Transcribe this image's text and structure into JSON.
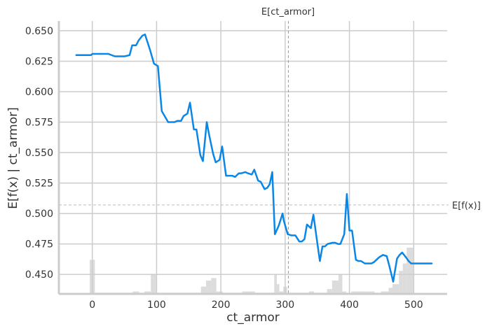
{
  "chart_data": {
    "type": "line",
    "xlabel": "ct_armor",
    "ylabel": "E[f(x) | ct_armor]",
    "xlim": [
      -52,
      552
    ],
    "ylim": [
      0.434,
      0.658
    ],
    "x_ticks": [
      0,
      100,
      200,
      300,
      400,
      500
    ],
    "y_ticks": [
      0.45,
      0.475,
      0.5,
      0.525,
      0.55,
      0.575,
      0.6,
      0.625,
      0.65
    ],
    "grid": true,
    "colors": {
      "line": "#0a86e6",
      "hist": "#dcdcdc",
      "ref": "#999999",
      "grid": "#cccccc"
    },
    "mean_x": 305,
    "mean_x_label": "E[ct_armor]",
    "mean_y": 0.507,
    "mean_y_label": "E[f(x)]",
    "series": [
      {
        "x": [
          -25,
          -2,
          0,
          25,
          35,
          50,
          58,
          62,
          68,
          72,
          78,
          82,
          90,
          96,
          102,
          108,
          118,
          128,
          132,
          138,
          142,
          148,
          152,
          158,
          162,
          168,
          172,
          178,
          182,
          188,
          192,
          198,
          202,
          208,
          218,
          222,
          228,
          232,
          238,
          242,
          248,
          252,
          258,
          262,
          268,
          272,
          276,
          280,
          284,
          290,
          296,
          298,
          304,
          310,
          316,
          322,
          326,
          330,
          334,
          340,
          344,
          350,
          354,
          358,
          362,
          366,
          374,
          378,
          382,
          386,
          392,
          396,
          400,
          404,
          410,
          414,
          418,
          424,
          428,
          434,
          438,
          446,
          452,
          458,
          462,
          468,
          474,
          478,
          482,
          488,
          492,
          496,
          502,
          508,
          528
        ],
        "y": [
          0.63,
          0.63,
          0.631,
          0.631,
          0.629,
          0.629,
          0.63,
          0.638,
          0.638,
          0.642,
          0.646,
          0.647,
          0.634,
          0.623,
          0.621,
          0.584,
          0.575,
          0.575,
          0.576,
          0.576,
          0.58,
          0.582,
          0.591,
          0.569,
          0.569,
          0.548,
          0.543,
          0.575,
          0.564,
          0.549,
          0.542,
          0.544,
          0.555,
          0.531,
          0.531,
          0.53,
          0.533,
          0.533,
          0.534,
          0.533,
          0.532,
          0.536,
          0.527,
          0.526,
          0.52,
          0.521,
          0.524,
          0.534,
          0.483,
          0.49,
          0.5,
          0.494,
          0.483,
          0.482,
          0.482,
          0.477,
          0.477,
          0.479,
          0.491,
          0.488,
          0.499,
          0.476,
          0.461,
          0.473,
          0.473,
          0.475,
          0.476,
          0.476,
          0.475,
          0.475,
          0.483,
          0.516,
          0.486,
          0.486,
          0.462,
          0.461,
          0.461,
          0.459,
          0.459,
          0.459,
          0.46,
          0.464,
          0.466,
          0.465,
          0.457,
          0.444,
          0.463,
          0.466,
          0.468,
          0.464,
          0.461,
          0.459,
          0.459,
          0.459,
          0.459
        ]
      }
    ],
    "histogram": {
      "bins": [
        -4,
        4,
        55,
        63,
        73,
        81,
        91,
        99,
        169,
        177,
        185,
        193,
        203,
        233,
        243,
        253,
        263,
        269,
        283,
        287,
        291,
        297,
        303,
        337,
        345,
        365,
        373,
        383,
        389,
        395,
        403,
        429,
        439,
        449,
        461,
        467,
        477,
        483,
        489,
        499
      ],
      "heights": [
        0.462,
        0.435,
        0.435,
        0.436,
        0.435,
        0.436,
        0.45,
        0.435,
        0.44,
        0.445,
        0.447,
        0.436,
        0.435,
        0.436,
        0.436,
        0.435,
        0.435,
        0.435,
        0.45,
        0.442,
        0.436,
        0.44,
        0.435,
        0.436,
        0.435,
        0.438,
        0.445,
        0.45,
        0.436,
        0.435,
        0.436,
        0.436,
        0.435,
        0.436,
        0.439,
        0.442,
        0.453,
        0.459,
        0.472
      ]
    }
  }
}
